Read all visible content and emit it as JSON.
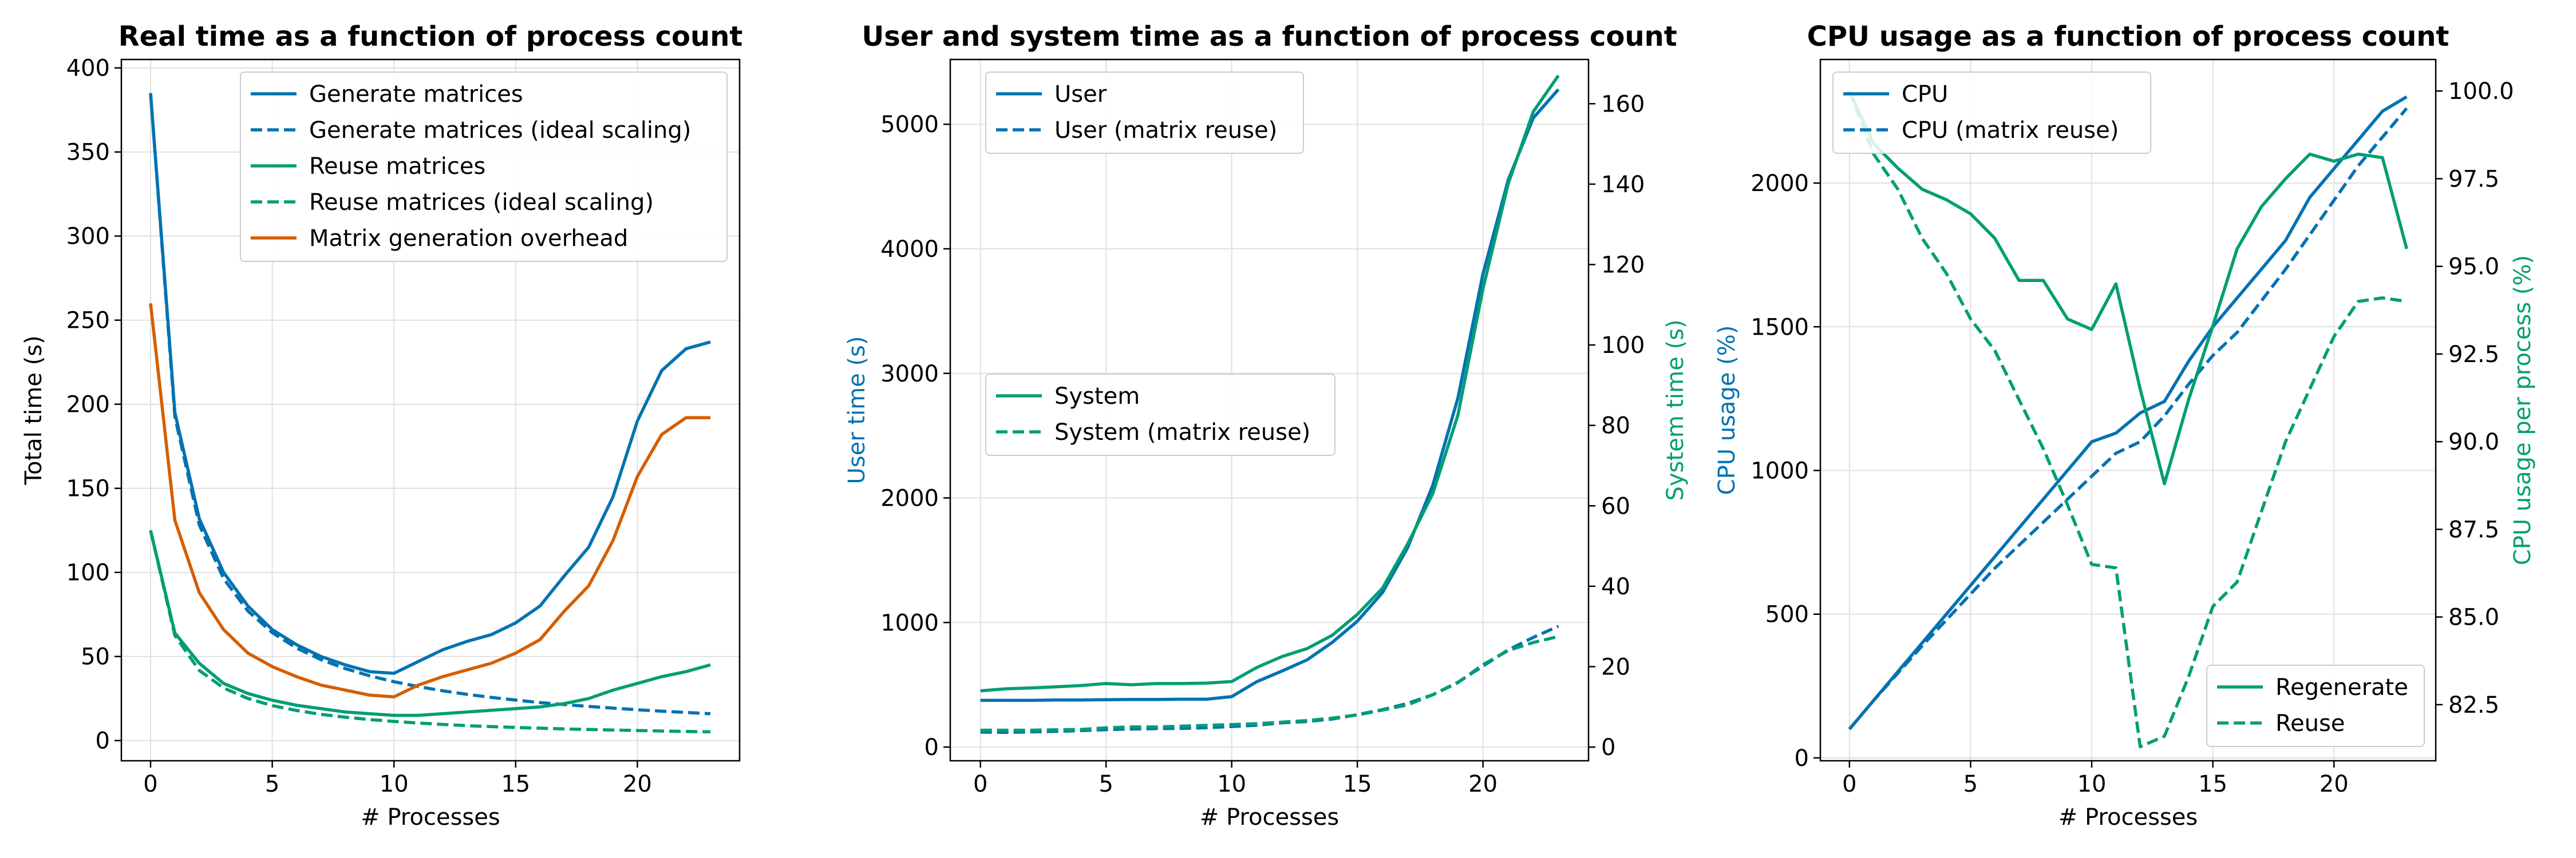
{
  "colors": {
    "blue": "#0072b2",
    "green": "#009e73",
    "orange": "#d55e00"
  },
  "chart_data": [
    {
      "type": "line",
      "title": "Real time as a function of process count",
      "xlabel": "# Processes",
      "ylabel": "Total time (s)",
      "xlim": [
        -1.2,
        24.2
      ],
      "ylim": [
        -12,
        405
      ],
      "xticks": [
        0,
        5,
        10,
        15,
        20
      ],
      "yticks": [
        0,
        50,
        100,
        150,
        200,
        250,
        300,
        350,
        400
      ],
      "grid": true,
      "legend_position": "top-right",
      "x": [
        0,
        1,
        2,
        3,
        4,
        5,
        6,
        7,
        8,
        9,
        10,
        11,
        12,
        13,
        14,
        15,
        16,
        17,
        18,
        19,
        20,
        21,
        22,
        23
      ],
      "series": [
        {
          "name": "Generate matrices",
          "color": "#0072b2",
          "dash": "solid",
          "values": [
            385,
            195,
            132,
            100,
            80,
            66,
            57,
            50,
            45,
            41,
            40,
            47,
            54,
            59,
            63,
            70,
            80,
            98,
            115,
            145,
            190,
            220,
            233,
            237
          ]
        },
        {
          "name": "Generate matrices (ideal scaling)",
          "color": "#0072b2",
          "dash": "dashed",
          "values": [
            385,
            192.5,
            128.3,
            96.3,
            77,
            64.2,
            55,
            48.1,
            42.8,
            38.5,
            35,
            32.1,
            29.6,
            27.5,
            25.7,
            24.1,
            22.6,
            21.4,
            20.3,
            19.3,
            18.3,
            17.5,
            16.7,
            16
          ]
        },
        {
          "name": "Reuse matrices",
          "color": "#009e73",
          "dash": "solid",
          "values": [
            125,
            64,
            46,
            34,
            28,
            24,
            21,
            19,
            17,
            16,
            15,
            15,
            16,
            17,
            18,
            19,
            20,
            22,
            25,
            30,
            34,
            38,
            41,
            45
          ]
        },
        {
          "name": "Reuse matrices (ideal scaling)",
          "color": "#009e73",
          "dash": "dashed",
          "values": [
            125,
            62.5,
            41.7,
            31.3,
            25,
            20.8,
            17.9,
            15.6,
            13.9,
            12.5,
            11.4,
            10.4,
            9.6,
            8.9,
            8.3,
            7.8,
            7.4,
            6.9,
            6.6,
            6.3,
            6,
            5.7,
            5.4,
            5.2
          ]
        },
        {
          "name": "Matrix generation overhead",
          "color": "#d55e00",
          "dash": "solid",
          "values": [
            260,
            131,
            88,
            66,
            52,
            44,
            38,
            33,
            30,
            27,
            26,
            33,
            38,
            42,
            46,
            52,
            60,
            77,
            92,
            119,
            157,
            182,
            192,
            192
          ]
        }
      ]
    },
    {
      "type": "line",
      "title": "User and system time as a function of process count",
      "xlabel": "# Processes",
      "ylabel": "User time (s)",
      "y2label": "System time (s)",
      "xlim": [
        -1.2,
        24.2
      ],
      "ylim": [
        -110,
        5520
      ],
      "y2lim": [
        -3.4,
        171
      ],
      "xticks": [
        0,
        5,
        10,
        15,
        20
      ],
      "yticks": [
        0,
        1000,
        2000,
        3000,
        4000,
        5000
      ],
      "y2ticks": [
        0,
        20,
        40,
        60,
        80,
        100,
        120,
        140,
        160
      ],
      "grid": true,
      "legend_position": "top-left",
      "legend2_position": "center-left",
      "x": [
        0,
        1,
        2,
        3,
        4,
        5,
        6,
        7,
        8,
        9,
        10,
        11,
        12,
        13,
        14,
        15,
        16,
        17,
        18,
        19,
        20,
        21,
        22,
        23
      ],
      "series": [
        {
          "name": "User",
          "axis": "left",
          "color": "#0072b2",
          "dash": "solid",
          "values": [
            375,
            375,
            375,
            378,
            378,
            380,
            382,
            382,
            384,
            384,
            405,
            525,
            610,
            700,
            840,
            1010,
            1240,
            1600,
            2100,
            2800,
            3800,
            4550,
            5050,
            5280
          ]
        },
        {
          "name": "User (matrix reuse)",
          "axis": "left",
          "color": "#0072b2",
          "dash": "dashed",
          "values": [
            120,
            118,
            122,
            126,
            132,
            140,
            145,
            148,
            150,
            155,
            165,
            175,
            195,
            205,
            225,
            260,
            300,
            350,
            420,
            520,
            650,
            780,
            880,
            970
          ]
        },
        {
          "name": "System",
          "axis": "right",
          "color": "#009e73",
          "dash": "solid",
          "values": [
            14,
            14.5,
            14.7,
            15,
            15.3,
            15.8,
            15.5,
            15.8,
            15.8,
            15.9,
            16.3,
            19.8,
            22.5,
            24.5,
            27.8,
            33,
            39.5,
            50.5,
            63,
            82.5,
            114,
            140,
            158,
            167
          ]
        },
        {
          "name": "System (matrix reuse)",
          "axis": "right",
          "color": "#009e73",
          "dash": "dashed",
          "values": [
            4.2,
            4.2,
            4.2,
            4.3,
            4.4,
            4.8,
            5,
            5,
            5.2,
            5.4,
            5.6,
            5.8,
            6.2,
            6.6,
            7.2,
            8,
            9.2,
            10.5,
            13,
            16,
            20.5,
            24,
            26,
            27.5
          ]
        }
      ]
    },
    {
      "type": "line",
      "title": "CPU usage as a function of process count",
      "xlabel": "# Processes",
      "ylabel": "CPU usage (%)",
      "y2label": "CPU usage per process (%)",
      "xlim": [
        -1.2,
        24.2
      ],
      "ylim": [
        -10,
        2430
      ],
      "y2lim": [
        80.9,
        100.9
      ],
      "xticks": [
        0,
        5,
        10,
        15,
        20
      ],
      "yticks": [
        0,
        500,
        1000,
        1500,
        2000
      ],
      "y2ticks": [
        82.5,
        85.0,
        87.5,
        90.0,
        92.5,
        95.0,
        97.5,
        100.0
      ],
      "grid": true,
      "legend_position": "top-left",
      "legend2_position": "bottom-right",
      "x": [
        0,
        1,
        2,
        3,
        4,
        5,
        6,
        7,
        8,
        9,
        10,
        11,
        12,
        13,
        14,
        15,
        16,
        17,
        18,
        19,
        20,
        21,
        22,
        23
      ],
      "series": [
        {
          "name": "CPU",
          "axis": "left",
          "color": "#0072b2",
          "dash": "solid",
          "values": [
            100,
            200,
            300,
            400,
            500,
            600,
            700,
            800,
            900,
            1000,
            1100,
            1130,
            1200,
            1240,
            1380,
            1500,
            1600,
            1700,
            1800,
            1950,
            2050,
            2150,
            2250,
            2300
          ]
        },
        {
          "name": "CPU (matrix reuse)",
          "axis": "left",
          "color": "#0072b2",
          "dash": "dashed",
          "values": [
            100,
            200,
            295,
            390,
            480,
            570,
            660,
            740,
            820,
            900,
            980,
            1060,
            1100,
            1190,
            1300,
            1400,
            1480,
            1590,
            1700,
            1820,
            1940,
            2060,
            2160,
            2260
          ]
        },
        {
          "name": "Regenerate",
          "axis": "right",
          "color": "#009e73",
          "dash": "solid",
          "values": [
            100,
            98.5,
            97.8,
            97.2,
            96.9,
            96.5,
            95.8,
            94.6,
            94.6,
            93.5,
            93.2,
            94.5,
            91.5,
            88.8,
            91.2,
            93.3,
            95.5,
            96.7,
            97.5,
            98.2,
            98,
            98.2,
            98.1,
            95.5
          ]
        },
        {
          "name": "Reuse",
          "axis": "right",
          "color": "#009e73",
          "dash": "dashed",
          "values": [
            100,
            98.2,
            97.2,
            95.8,
            94.8,
            93.5,
            92.6,
            91.2,
            89.8,
            88.2,
            86.5,
            86.4,
            81.3,
            81.6,
            83.3,
            85.3,
            86,
            88,
            90,
            91.5,
            93,
            94,
            94.1,
            94
          ]
        }
      ]
    }
  ]
}
